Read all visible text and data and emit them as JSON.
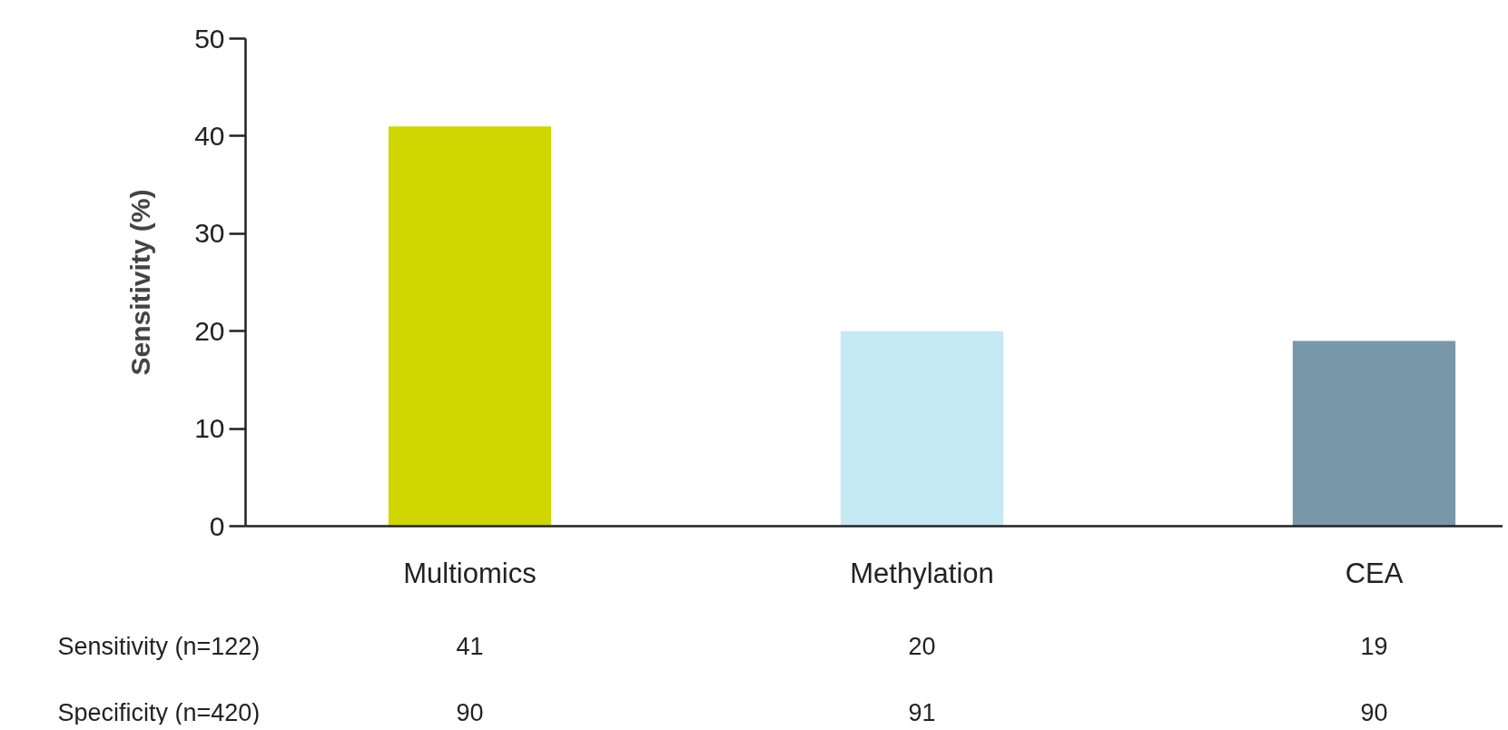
{
  "chart_data": {
    "type": "bar",
    "ylabel": "Sensitivity (%)",
    "categories": [
      "Multiomics",
      "Methylation",
      "CEA"
    ],
    "values": [
      41,
      20,
      19
    ],
    "colors": [
      "#d0d600",
      "#c5eaf3",
      "#7898aa"
    ],
    "ylim": [
      0,
      50
    ],
    "yticks": [
      0,
      10,
      20,
      30,
      40,
      50
    ],
    "grid": false,
    "data_labels": true,
    "annotations": [
      "Sensitivity (n=122)",
      "Specificity (n=420)",
      "90",
      "91",
      "90"
    ]
  }
}
